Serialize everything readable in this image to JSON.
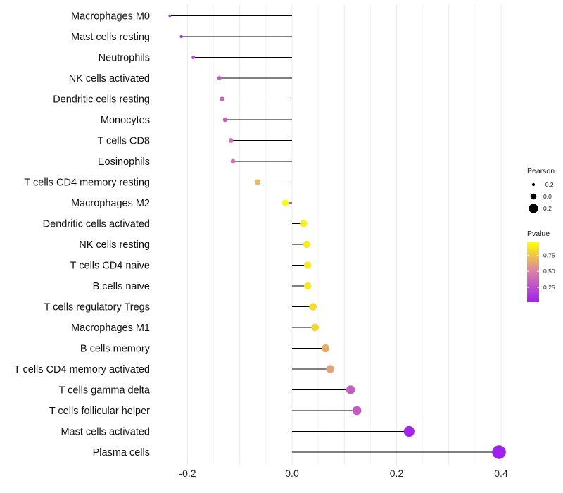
{
  "chart_data": {
    "type": "lollipop",
    "categories": [
      "Macrophages M0",
      "Mast cells resting",
      "Neutrophils",
      "NK cells activated",
      "Dendritic cells resting",
      "Monocytes",
      "T cells CD8",
      "Eosinophils",
      "T cells CD4 memory resting",
      "Macrophages M2",
      "Dendritic cells activated",
      "NK cells resting",
      "T cells CD4 naive",
      "B cells naive",
      "T cells regulatory  Tregs",
      "Macrophages M1",
      "B cells memory",
      "T cells CD4 memory activated",
      "T cells gamma delta",
      "T cells follicular helper",
      "Mast cells activated",
      "Plasma cells"
    ],
    "pearson": [
      -0.234,
      -0.212,
      -0.189,
      -0.139,
      -0.134,
      -0.128,
      -0.117,
      -0.113,
      -0.066,
      -0.013,
      0.022,
      0.028,
      0.03,
      0.03,
      0.04,
      0.044,
      0.064,
      0.073,
      0.112,
      0.124,
      0.224,
      0.396
    ],
    "pvalue": [
      0.07,
      0.14,
      0.22,
      0.3,
      0.33,
      0.35,
      0.4,
      0.42,
      0.68,
      0.95,
      0.9,
      0.88,
      0.87,
      0.87,
      0.82,
      0.8,
      0.65,
      0.62,
      0.33,
      0.3,
      0.05,
      0.01
    ],
    "xlim": [
      -0.27,
      0.42
    ],
    "xticks": [
      -0.2,
      0.0,
      0.2,
      0.4
    ],
    "xtick_labels": [
      "-0.2",
      "0.0",
      "0.2",
      "0.4"
    ],
    "grid": true,
    "legend": {
      "size_title": "Pearson",
      "size_values": [
        -0.2,
        0.0,
        0.2
      ],
      "size_labels": [
        "-0.2",
        "0.0",
        "0.2"
      ],
      "color_title": "Pvalue",
      "color_range": [
        0.02,
        0.95
      ],
      "color_ticks": [
        0.25,
        0.5,
        0.75
      ],
      "color_tick_labels": [
        "0.25",
        "0.50",
        "0.75"
      ],
      "color_low": "#a020f0",
      "color_mid": "#d87fa8",
      "color_high": "#ffff00",
      "placement": "right"
    }
  }
}
